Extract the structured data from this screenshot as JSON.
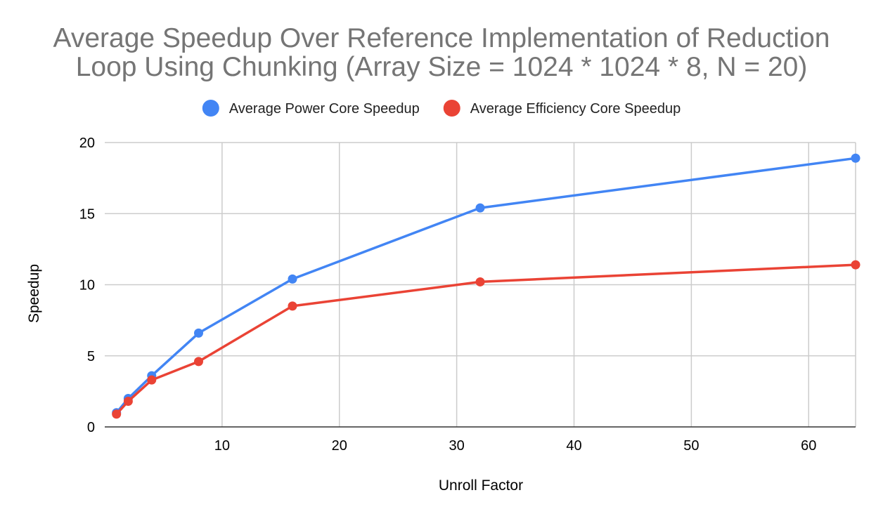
{
  "chart_data": {
    "type": "line",
    "title_lines": [
      "Average Speedup Over Reference Implementation of Reduction",
      "Loop Using Chunking (Array Size = 1024 * 1024 * 8, N = 20)"
    ],
    "xlabel": "Unroll Factor",
    "ylabel": "Speedup",
    "xlim": [
      0,
      64
    ],
    "ylim": [
      0,
      20
    ],
    "xticks": [
      10,
      20,
      30,
      40,
      50,
      60
    ],
    "yticks": [
      0,
      5,
      10,
      15,
      20
    ],
    "grid": true,
    "legend_position": "top",
    "x": [
      1,
      2,
      4,
      8,
      16,
      32,
      64
    ],
    "series": [
      {
        "name": "Average Power Core Speedup",
        "color": "#4285f4",
        "values": [
          1.0,
          2.0,
          3.6,
          6.6,
          10.4,
          15.4,
          18.9
        ]
      },
      {
        "name": "Average Efficiency Core Speedup",
        "color": "#ea4335",
        "values": [
          0.9,
          1.8,
          3.3,
          4.6,
          8.5,
          10.2,
          11.4
        ]
      }
    ]
  }
}
